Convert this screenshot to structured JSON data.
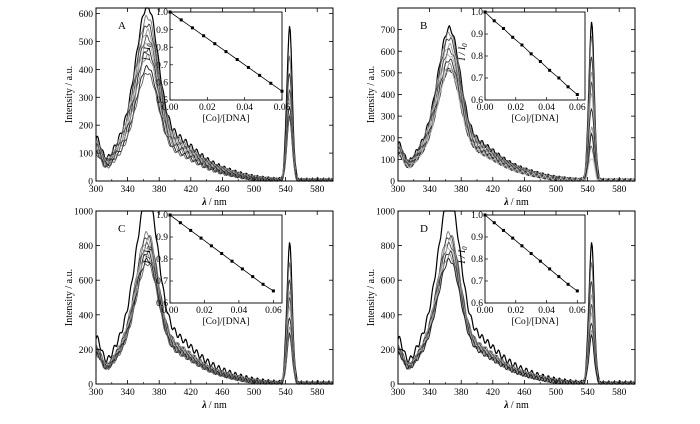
{
  "chart_data": [
    {
      "type": "line",
      "panel_label": "A",
      "xlabel_symbol": "λ",
      "xlabel_unit": "/ nm",
      "ylabel": "Intensity / a.u.",
      "xlim": [
        300,
        600
      ],
      "ylim": [
        0,
        620
      ],
      "x_ticks": [
        300,
        340,
        380,
        420,
        460,
        500,
        540,
        580
      ],
      "y_ticks": [
        0,
        100,
        200,
        300,
        400,
        500,
        600
      ],
      "curve_peaks": [
        560,
        525,
        500,
        480,
        460,
        440,
        420,
        400,
        365,
        345
      ],
      "peak2_values": [
        550,
        440,
        390,
        330,
        320,
        290,
        270,
        240,
        225
      ],
      "inset": {
        "xlabel": "[Co]/[DNA]",
        "ylabel_text": "I / I",
        "ylabel_sub": "0",
        "xlim": [
          0,
          0.06
        ],
        "ylim": [
          0.5,
          1.0
        ],
        "x_ticks": [
          "0.00",
          "0.02",
          "0.04",
          "0.06"
        ],
        "y_ticks": [
          "0.5",
          "0.6",
          "0.7",
          "0.8",
          "0.9",
          "1.0"
        ],
        "x": [
          0.0,
          0.006,
          0.012,
          0.018,
          0.024,
          0.03,
          0.036,
          0.042,
          0.048,
          0.054,
          0.06
        ],
        "y": [
          1.0,
          0.955,
          0.91,
          0.865,
          0.82,
          0.775,
          0.73,
          0.685,
          0.64,
          0.595,
          0.55
        ]
      }
    },
    {
      "type": "line",
      "panel_label": "B",
      "xlabel_symbol": "λ",
      "xlabel_unit": "/ nm",
      "ylabel": "Intensity / a.u.",
      "xlim": [
        300,
        600
      ],
      "ylim": [
        0,
        800
      ],
      "x_ticks": [
        300,
        340,
        380,
        420,
        460,
        500,
        540,
        580
      ],
      "y_ticks": [
        0,
        100,
        200,
        300,
        400,
        500,
        600,
        700
      ],
      "curve_peaks": [
        630,
        610,
        590,
        560,
        540,
        520,
        500,
        480,
        460
      ],
      "peak2_values": [
        730,
        660,
        580,
        510,
        450,
        400,
        340,
        250,
        210,
        160,
        110
      ],
      "inset": {
        "xlabel": "[Co]/[DNA]",
        "ylabel_text": "I / I",
        "ylabel_sub": "0",
        "xlim": [
          0,
          0.065
        ],
        "ylim": [
          0.6,
          1.0
        ],
        "x_ticks": [
          "0.00",
          "0.02",
          "0.04",
          "0.06"
        ],
        "y_ticks": [
          "0.6",
          "0.7",
          "0.8",
          "0.9",
          "1.0"
        ],
        "x": [
          0.0,
          0.006,
          0.012,
          0.018,
          0.024,
          0.03,
          0.036,
          0.042,
          0.048,
          0.054,
          0.06
        ],
        "y": [
          1.0,
          0.96,
          0.925,
          0.885,
          0.85,
          0.81,
          0.775,
          0.735,
          0.7,
          0.66,
          0.625
        ]
      }
    },
    {
      "type": "line",
      "panel_label": "C",
      "xlabel_symbol": "λ",
      "xlabel_unit": "/ nm",
      "ylabel": "Intensity / a.u.",
      "xlim": [
        300,
        600
      ],
      "ylim": [
        0,
        1000
      ],
      "x_ticks": [
        300,
        340,
        380,
        420,
        460,
        500,
        540,
        580
      ],
      "y_ticks": [
        0,
        200,
        400,
        600,
        800,
        1000
      ],
      "curve_peaks": [
        970,
        780,
        760,
        740,
        720,
        700,
        680,
        660,
        640,
        620
      ],
      "peak2_values": [
        810,
        690,
        610,
        540,
        490,
        440,
        390,
        330,
        280
      ],
      "inset": {
        "xlabel": "[Co]/[DNA]",
        "ylabel_text": "I / I",
        "ylabel_sub": "0",
        "xlim": [
          0,
          0.065
        ],
        "ylim": [
          0.6,
          1.0
        ],
        "x_ticks": [
          "0.00",
          "0.02",
          "0.04",
          "0.06"
        ],
        "y_ticks": [
          "0.6",
          "0.7",
          "0.8",
          "0.9",
          "1.0"
        ],
        "x": [
          0.0,
          0.006,
          0.012,
          0.018,
          0.024,
          0.03,
          0.036,
          0.042,
          0.048,
          0.054,
          0.06
        ],
        "y": [
          1.0,
          0.965,
          0.93,
          0.895,
          0.86,
          0.825,
          0.79,
          0.755,
          0.72,
          0.685,
          0.655
        ]
      }
    },
    {
      "type": "line",
      "panel_label": "D",
      "xlabel_symbol": "λ",
      "xlabel_unit": "/ nm",
      "ylabel": "Intensity / a.u.",
      "xlim": [
        300,
        600
      ],
      "ylim": [
        0,
        1000
      ],
      "x_ticks": [
        300,
        340,
        380,
        420,
        460,
        500,
        540,
        580
      ],
      "y_ticks": [
        0,
        200,
        400,
        600,
        800,
        1000
      ],
      "curve_peaks": [
        960,
        780,
        760,
        740,
        720,
        700,
        680,
        660,
        640
      ],
      "peak2_values": [
        810,
        690,
        600,
        520,
        450,
        400,
        360,
        310,
        270
      ],
      "inset": {
        "xlabel": "[Co]/[DNA]",
        "ylabel_text": "I / I",
        "ylabel_sub": "0",
        "xlim": [
          0,
          0.065
        ],
        "ylim": [
          0.6,
          1.0
        ],
        "x_ticks": [
          "0.00",
          "0.02",
          "0.04",
          "0.06"
        ],
        "y_ticks": [
          "0.6",
          "0.7",
          "0.8",
          "0.9",
          "1.0"
        ],
        "x": [
          0.0,
          0.006,
          0.012,
          0.018,
          0.024,
          0.03,
          0.036,
          0.042,
          0.048,
          0.054,
          0.06
        ],
        "y": [
          1.0,
          0.965,
          0.93,
          0.895,
          0.86,
          0.825,
          0.79,
          0.755,
          0.72,
          0.685,
          0.655
        ]
      }
    }
  ]
}
